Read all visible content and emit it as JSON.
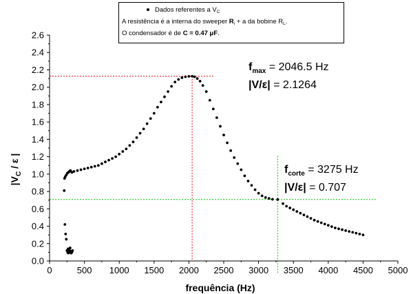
{
  "chart_data": {
    "type": "scatter",
    "xlabel": "frequência (Hz)",
    "ylabel": "|V_C / ε|",
    "xlim": [
      0,
      5000
    ],
    "ylim": [
      0.0,
      2.6
    ],
    "xticks": [
      "0",
      "500",
      "1000",
      "1500",
      "2000",
      "2500",
      "3000",
      "3500",
      "4000",
      "4500",
      "5000"
    ],
    "yticks": [
      "0.0",
      "0.2",
      "0.4",
      "0.6",
      "0.8",
      "1.0",
      "1.2",
      "1.4",
      "1.6",
      "1.8",
      "2.0",
      "2.2",
      "2.4",
      "2.6"
    ],
    "grid": false,
    "legend_position": "top",
    "series": [
      {
        "name": "Dados referentes a V_C",
        "x": [
          220,
          230,
          240,
          250,
          260,
          265,
          270,
          275,
          280,
          285,
          290,
          295,
          300,
          310,
          320,
          330,
          210,
          215,
          225,
          240,
          255,
          270,
          285,
          300,
          320,
          350,
          400,
          450,
          500,
          550,
          600,
          650,
          700,
          750,
          800,
          850,
          900,
          950,
          1000,
          1050,
          1100,
          1150,
          1200,
          1250,
          1300,
          1350,
          1400,
          1450,
          1500,
          1550,
          1600,
          1650,
          1700,
          1750,
          1800,
          1850,
          1900,
          1950,
          2000,
          2046.5,
          2080,
          2120,
          2160,
          2200,
          2250,
          2300,
          2350,
          2400,
          2450,
          2500,
          2550,
          2600,
          2650,
          2700,
          2750,
          2800,
          2850,
          2900,
          2950,
          3000,
          3050,
          3100,
          3150,
          3200,
          3275,
          3350,
          3400,
          3450,
          3500,
          3550,
          3600,
          3650,
          3700,
          3750,
          3800,
          3850,
          3900,
          3950,
          4000,
          4050,
          4100,
          4150,
          4200,
          4250,
          4300,
          4350,
          4400,
          4450,
          4500
        ],
        "y": [
          0.42,
          0.31,
          0.25,
          0.12,
          0.1,
          0.14,
          0.09,
          0.11,
          0.13,
          0.1,
          0.12,
          0.15,
          0.11,
          0.09,
          0.1,
          0.12,
          0.81,
          0.95,
          0.97,
          0.99,
          1.01,
          1.02,
          1.03,
          1.04,
          1.02,
          1.03,
          1.04,
          1.05,
          1.06,
          1.07,
          1.08,
          1.09,
          1.1,
          1.12,
          1.14,
          1.16,
          1.18,
          1.2,
          1.23,
          1.26,
          1.29,
          1.33,
          1.37,
          1.42,
          1.47,
          1.52,
          1.58,
          1.64,
          1.7,
          1.77,
          1.83,
          1.89,
          1.95,
          2.01,
          2.06,
          2.09,
          2.11,
          2.12,
          2.125,
          2.1264,
          2.12,
          2.1,
          2.07,
          2.02,
          1.95,
          1.85,
          1.75,
          1.65,
          1.55,
          1.45,
          1.36,
          1.27,
          1.19,
          1.12,
          1.05,
          0.98,
          0.92,
          0.87,
          0.82,
          0.78,
          0.75,
          0.73,
          0.72,
          0.71,
          0.707,
          0.66,
          0.63,
          0.61,
          0.59,
          0.57,
          0.55,
          0.53,
          0.51,
          0.49,
          0.47,
          0.455,
          0.44,
          0.425,
          0.41,
          0.395,
          0.38,
          0.37,
          0.36,
          0.35,
          0.34,
          0.33,
          0.32,
          0.31,
          0.3
        ]
      }
    ],
    "reference_lines": [
      {
        "orientation": "horizontal",
        "value": 2.1264,
        "color": "#e8000b"
      },
      {
        "orientation": "vertical",
        "value": 2046.5,
        "color": "#e8000b"
      },
      {
        "orientation": "horizontal",
        "value": 0.707,
        "color": "#00c800"
      },
      {
        "orientation": "vertical",
        "value": 3275,
        "color": "#00c800"
      }
    ]
  },
  "legend": {
    "series_label": "Dados referentes a V",
    "series_sub": "C",
    "line2_pre": "A resistência é a interna do sweeper ",
    "line2_r": "R",
    "line2_rsub": "i",
    "line2_mid": " + a da bobine R",
    "line2_lsub": "L",
    "line2_end": ".",
    "line3_pre": "O condensador é de ",
    "line3_bold": "C = 0.47 μF",
    "line3_end": "."
  },
  "annotations": {
    "fmax_f": "f",
    "fmax_sub": "max",
    "fmax_value": " = 2046.5 Hz",
    "vmax_label": "|V/ε|",
    "vmax_value": " = 2.1264",
    "fcorte_f": "f",
    "fcorte_sub": "corte",
    "fcorte_value": " = 3275 Hz",
    "vcorte_label": "|V/ε|",
    "vcorte_value": " = 0.707"
  },
  "ylabel_parts": {
    "pre": "|V",
    "sub": "C",
    "post": " / ε |"
  }
}
